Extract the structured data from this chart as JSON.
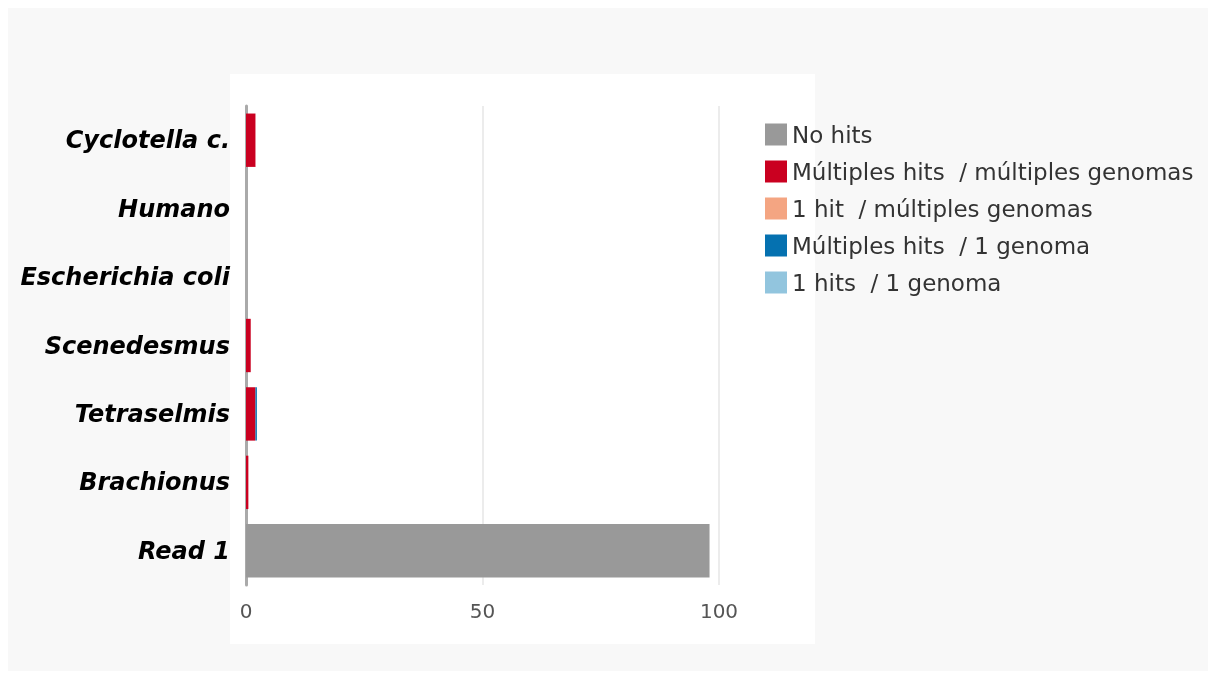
{
  "chart_data": {
    "type": "bar",
    "orientation": "horizontal",
    "stacked": true,
    "categories": [
      "Cyclotella c.",
      "Humano",
      "Escherichia coli",
      "Scenedesmus",
      "Tetraselmis",
      "Brachionus",
      "Read 1"
    ],
    "series": [
      {
        "name": "No hits",
        "color": "#999999",
        "values": [
          0,
          0,
          0,
          0,
          0,
          0,
          98
        ]
      },
      {
        "name": "Múltiples hits  / múltiples genomas",
        "color": "#ca0020",
        "values": [
          2,
          0,
          0,
          1,
          2,
          0.5,
          0
        ]
      },
      {
        "name": "1 hit  / múltiples genomas",
        "color": "#f4a582",
        "values": [
          0,
          0,
          0,
          0,
          0,
          0,
          0
        ]
      },
      {
        "name": "Múltiples hits  / 1 genoma",
        "color": "#0571b0",
        "values": [
          0,
          0,
          0,
          0,
          0.3,
          0,
          0
        ]
      },
      {
        "name": "1 hits  / 1 genoma",
        "color": "#92c5de",
        "values": [
          0,
          0,
          0,
          0,
          0,
          0,
          0
        ]
      }
    ],
    "xlim": [
      0,
      100
    ],
    "xticks": [
      0,
      50,
      100
    ],
    "grid": "x",
    "legend": "top right"
  }
}
